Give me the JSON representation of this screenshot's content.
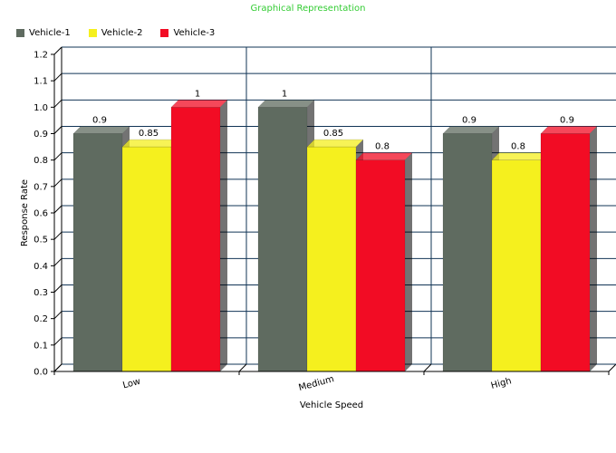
{
  "chart_data": {
    "type": "bar",
    "title": "Graphical Representation",
    "xlabel": "Vehicle Speed",
    "ylabel": "Response Rate",
    "ylim": [
      0,
      1.2
    ],
    "yticks": [
      "0.0",
      "0.1",
      "0.2",
      "0.3",
      "0.4",
      "0.5",
      "0.6",
      "0.7",
      "0.8",
      "0.9",
      "1.0",
      "1.1",
      "1.2"
    ],
    "categories": [
      "Low",
      "Medium",
      "High"
    ],
    "series": [
      {
        "name": "Vehicle-1",
        "values": [
          0.9,
          1,
          0.9
        ],
        "labels": [
          "0.9",
          "1",
          "0.9"
        ],
        "color": "#5f6b60"
      },
      {
        "name": "Vehicle-2",
        "values": [
          0.85,
          0.85,
          0.8
        ],
        "labels": [
          "0.85",
          "0.85",
          "0.8"
        ],
        "color": "#f5f01e"
      },
      {
        "name": "Vehicle-3",
        "values": [
          1,
          0.8,
          0.9
        ],
        "labels": [
          "1",
          "0.8",
          "0.9"
        ],
        "color": "#f20c24"
      }
    ],
    "grid": true,
    "legend_position": "top-left"
  }
}
